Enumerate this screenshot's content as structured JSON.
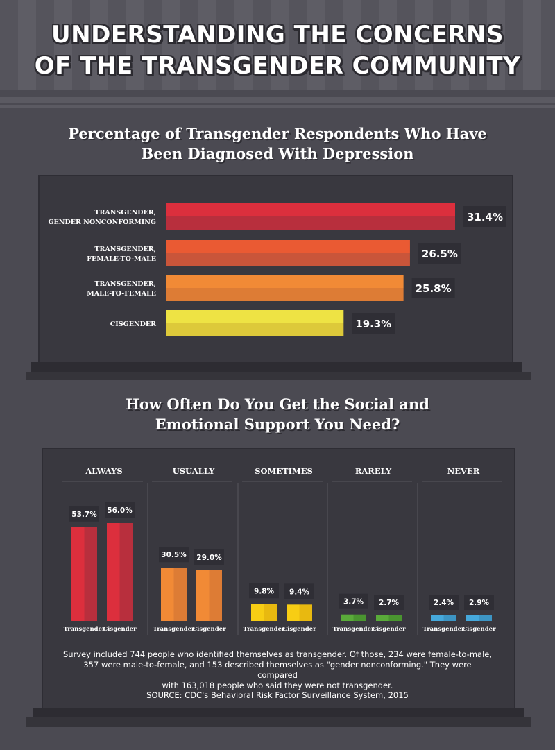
{
  "title_line1": "UNDERSTANDING THE CONCERNS",
  "title_line2": "OF THE TRANSGENDER COMMUNITY",
  "chart_data": [
    {
      "type": "bar",
      "orientation": "horizontal",
      "title": "Percentage of Transgender Respondents Who Have Been Diagnosed With Depression",
      "categories": [
        [
          "TRANSGENDER,",
          "GENDER NONCONFORMING"
        ],
        [
          "TRANSGENDER,",
          "FEMALE-TO-MALE"
        ],
        [
          "TRANSGENDER,",
          "MALE-TO-FEMALE"
        ],
        [
          "CISGENDER"
        ]
      ],
      "values": [
        31.4,
        26.5,
        25.8,
        19.3
      ],
      "value_labels": [
        "31.4%",
        "26.5%",
        "25.8%",
        "19.3%"
      ],
      "colors": [
        "#dc2f3d",
        "#ea5a33",
        "#f18a36",
        "#eee344"
      ],
      "shade_colors": [
        "#b82f3d",
        "#c9553a",
        "#dd7c35",
        "#ddc93a"
      ],
      "xlim": [
        0,
        31.4
      ]
    },
    {
      "type": "bar",
      "title": "How Often Do You Get the Social and Emotional Support You Need?",
      "categories": [
        "ALWAYS",
        "USUALLY",
        "SOMETIMES",
        "RARELY",
        "NEVER"
      ],
      "series": [
        {
          "name": "Transgender",
          "values": [
            53.7,
            30.5,
            9.8,
            3.7,
            2.4
          ]
        },
        {
          "name": "Cisgender",
          "values": [
            56.0,
            29.0,
            9.4,
            2.7,
            2.9
          ]
        }
      ],
      "value_labels": [
        [
          "53.7%",
          "30.5%",
          "9.8%",
          "3.7%",
          "2.4%"
        ],
        [
          "56.0%",
          "29.0%",
          "9.4%",
          "2.7%",
          "2.9%"
        ]
      ],
      "colors": [
        "#dc2f3d",
        "#f18a36",
        "#f7cd14",
        "#5aab3a",
        "#46a9dc"
      ],
      "shade_colors": [
        "#b82f3d",
        "#dd7c35",
        "#e8b910",
        "#4a9530",
        "#3d95c4"
      ],
      "ylim": [
        0,
        56.0
      ]
    }
  ],
  "footnote_lines": [
    "Survey included 744 people who identified themselves as transgender. Of those, 234 were female-to-male,",
    "357 were male-to-female, and 153 described themselves as \"gender nonconforming.\" They were compared",
    "with 163,018 people who said they were not transgender."
  ],
  "source": "SOURCE: CDC's Behavioral Risk Factor Surveillance System, 2015"
}
